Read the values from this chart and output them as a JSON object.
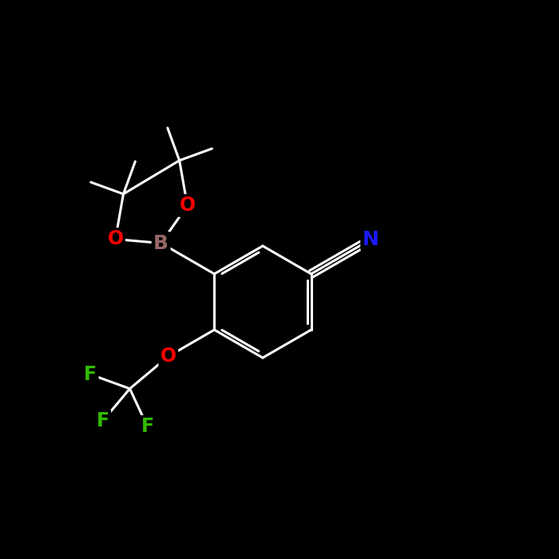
{
  "background_color": "#000000",
  "atom_colors": {
    "C": "#ffffff",
    "N": "#1a1aff",
    "O": "#ff0000",
    "B": "#996666",
    "F": "#33bb00",
    "H": "#ffffff"
  },
  "bond_color": "#ffffff",
  "bond_width": 2.2,
  "font_size_atom": 17,
  "fig_size": [
    7.0,
    7.0
  ],
  "dpi": 100,
  "xlim": [
    0,
    10
  ],
  "ylim": [
    0,
    10
  ]
}
